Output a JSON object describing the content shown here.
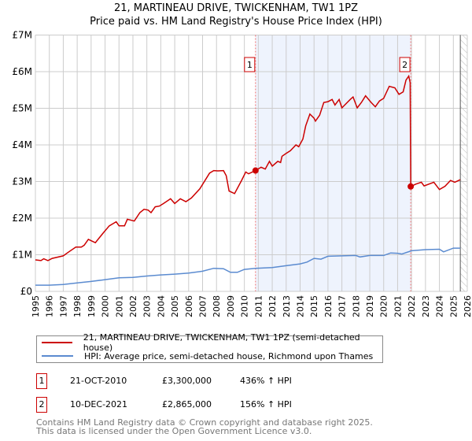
{
  "header": {
    "title": "21, MARTINEAU DRIVE, TWICKENHAM, TW1 1PZ",
    "subtitle": "Price paid vs. HM Land Registry's House Price Index (HPI)"
  },
  "legend": {
    "items": [
      {
        "label": "21, MARTINEAU DRIVE, TWICKENHAM, TW1 1PZ (semi-detached house)",
        "color": "#cc0000"
      },
      {
        "label": "HPI: Average price, semi-detached house, Richmond upon Thames",
        "color": "#5b8bd0"
      }
    ]
  },
  "transactions": [
    {
      "num": "1",
      "date": "21-OCT-2010",
      "price": "£3,300,000",
      "hpi": "436% ↑ HPI"
    },
    {
      "num": "2",
      "date": "10-DEC-2021",
      "price": "£2,865,000",
      "hpi": "156% ↑ HPI"
    }
  ],
  "footer": {
    "line1": "Contains HM Land Registry data © Crown copyright and database right 2025.",
    "line2": "This data is licensed under the Open Government Licence v3.0."
  },
  "chart_data": {
    "type": "line",
    "title": "21, MARTINEAU DRIVE, TWICKENHAM, TW1 1PZ",
    "subtitle": "Price paid vs. HM Land Registry's House Price Index (HPI)",
    "xlim": [
      1995,
      2026
    ],
    "ylim": [
      0,
      7000000
    ],
    "x_ticks": [
      "1995",
      "1996",
      "1997",
      "1998",
      "1999",
      "2000",
      "2001",
      "2002",
      "2003",
      "2004",
      "2005",
      "2006",
      "2007",
      "2008",
      "2009",
      "2010",
      "2011",
      "2012",
      "2013",
      "2014",
      "2015",
      "2016",
      "2017",
      "2018",
      "2019",
      "2020",
      "2021",
      "2022",
      "2023",
      "2024",
      "2025",
      "2026"
    ],
    "y_ticks": [
      {
        "v": 0,
        "label": "£0"
      },
      {
        "v": 1000000,
        "label": "£1M"
      },
      {
        "v": 2000000,
        "label": "£2M"
      },
      {
        "v": 3000000,
        "label": "£3M"
      },
      {
        "v": 4000000,
        "label": "£4M"
      },
      {
        "v": 5000000,
        "label": "£5M"
      },
      {
        "v": 6000000,
        "label": "£6M"
      },
      {
        "v": 7000000,
        "label": "£7M"
      }
    ],
    "grid": true,
    "shaded_range": [
      2010.8,
      2021.94
    ],
    "forecast_hatch_from": 2025.5,
    "annotations": [
      {
        "label": "1",
        "x": 2010.8,
        "y": 3300000
      },
      {
        "label": "2",
        "x": 2021.94,
        "y": 2865000
      }
    ],
    "series": [
      {
        "name": "21, MARTINEAU DRIVE, TWICKENHAM, TW1 1PZ (semi-detached house)",
        "color": "#cc0000",
        "points": [
          [
            1995.0,
            0.86
          ],
          [
            1995.4,
            0.84
          ],
          [
            1995.6,
            0.89
          ],
          [
            1995.9,
            0.84
          ],
          [
            1996.2,
            0.9
          ],
          [
            1997.0,
            0.97
          ],
          [
            1997.4,
            1.08
          ],
          [
            1997.9,
            1.21
          ],
          [
            1998.3,
            1.21
          ],
          [
            1998.5,
            1.26
          ],
          [
            1998.8,
            1.42
          ],
          [
            1999.3,
            1.33
          ],
          [
            1999.6,
            1.47
          ],
          [
            1999.9,
            1.61
          ],
          [
            2000.3,
            1.79
          ],
          [
            2000.8,
            1.9
          ],
          [
            2001.0,
            1.79
          ],
          [
            2001.4,
            1.79
          ],
          [
            2001.6,
            1.97
          ],
          [
            2002.1,
            1.92
          ],
          [
            2002.5,
            2.15
          ],
          [
            2002.8,
            2.24
          ],
          [
            2003.1,
            2.22
          ],
          [
            2003.3,
            2.15
          ],
          [
            2003.6,
            2.31
          ],
          [
            2003.9,
            2.33
          ],
          [
            2004.2,
            2.4
          ],
          [
            2004.7,
            2.53
          ],
          [
            2005.0,
            2.4
          ],
          [
            2005.4,
            2.53
          ],
          [
            2005.8,
            2.45
          ],
          [
            2006.2,
            2.55
          ],
          [
            2006.8,
            2.8
          ],
          [
            2007.5,
            3.23
          ],
          [
            2007.8,
            3.3
          ],
          [
            2008.1,
            3.29
          ],
          [
            2008.5,
            3.3
          ],
          [
            2008.7,
            3.16
          ],
          [
            2008.9,
            2.74
          ],
          [
            2009.3,
            2.67
          ],
          [
            2009.8,
            3.03
          ],
          [
            2010.1,
            3.26
          ],
          [
            2010.3,
            3.21
          ],
          [
            2010.8,
            3.3
          ],
          [
            2011.2,
            3.39
          ],
          [
            2011.5,
            3.34
          ],
          [
            2011.8,
            3.55
          ],
          [
            2012.0,
            3.42
          ],
          [
            2012.4,
            3.55
          ],
          [
            2012.6,
            3.52
          ],
          [
            2012.7,
            3.69
          ],
          [
            2013.0,
            3.77
          ],
          [
            2013.3,
            3.84
          ],
          [
            2013.7,
            4.0
          ],
          [
            2013.9,
            3.95
          ],
          [
            2014.2,
            4.16
          ],
          [
            2014.4,
            4.52
          ],
          [
            2014.7,
            4.84
          ],
          [
            2015.0,
            4.73
          ],
          [
            2015.1,
            4.65
          ],
          [
            2015.4,
            4.81
          ],
          [
            2015.7,
            5.16
          ],
          [
            2016.0,
            5.18
          ],
          [
            2016.3,
            5.24
          ],
          [
            2016.5,
            5.09
          ],
          [
            2016.8,
            5.24
          ],
          [
            2017.0,
            5.01
          ],
          [
            2017.6,
            5.24
          ],
          [
            2017.8,
            5.31
          ],
          [
            2018.1,
            5.01
          ],
          [
            2018.4,
            5.16
          ],
          [
            2018.7,
            5.34
          ],
          [
            2019.1,
            5.16
          ],
          [
            2019.4,
            5.04
          ],
          [
            2019.7,
            5.2
          ],
          [
            2020.0,
            5.27
          ],
          [
            2020.4,
            5.6
          ],
          [
            2020.8,
            5.56
          ],
          [
            2021.1,
            5.38
          ],
          [
            2021.4,
            5.45
          ],
          [
            2021.6,
            5.77
          ],
          [
            2021.8,
            5.88
          ],
          [
            2021.9,
            5.7
          ],
          [
            2021.94,
            2.865
          ],
          [
            2022.3,
            2.93
          ],
          [
            2022.7,
            2.98
          ],
          [
            2022.9,
            2.88
          ],
          [
            2023.6,
            2.98
          ],
          [
            2024.0,
            2.78
          ],
          [
            2024.4,
            2.87
          ],
          [
            2024.8,
            3.03
          ],
          [
            2025.1,
            2.98
          ],
          [
            2025.5,
            3.05
          ]
        ]
      },
      {
        "name": "HPI: Average price, semi-detached house, Richmond upon Thames",
        "color": "#5b8bd0",
        "points": [
          [
            1995.0,
            0.17
          ],
          [
            1996.0,
            0.17
          ],
          [
            1997.0,
            0.19
          ],
          [
            1998.0,
            0.23
          ],
          [
            1999.0,
            0.27
          ],
          [
            2000.0,
            0.32
          ],
          [
            2001.0,
            0.37
          ],
          [
            2002.0,
            0.38
          ],
          [
            2003.0,
            0.42
          ],
          [
            2004.0,
            0.45
          ],
          [
            2005.0,
            0.47
          ],
          [
            2006.0,
            0.5
          ],
          [
            2007.0,
            0.55
          ],
          [
            2007.8,
            0.63
          ],
          [
            2008.5,
            0.62
          ],
          [
            2009.0,
            0.52
          ],
          [
            2009.5,
            0.52
          ],
          [
            2010.0,
            0.6
          ],
          [
            2010.8,
            0.63
          ],
          [
            2012.0,
            0.65
          ],
          [
            2013.0,
            0.7
          ],
          [
            2014.0,
            0.75
          ],
          [
            2014.5,
            0.8
          ],
          [
            2015.0,
            0.9
          ],
          [
            2015.5,
            0.88
          ],
          [
            2016.0,
            0.96
          ],
          [
            2017.0,
            0.97
          ],
          [
            2018.0,
            0.98
          ],
          [
            2018.3,
            0.94
          ],
          [
            2019.0,
            0.98
          ],
          [
            2020.0,
            0.98
          ],
          [
            2020.5,
            1.05
          ],
          [
            2021.0,
            1.04
          ],
          [
            2021.3,
            1.02
          ],
          [
            2022.0,
            1.11
          ],
          [
            2023.0,
            1.14
          ],
          [
            2024.0,
            1.15
          ],
          [
            2024.3,
            1.08
          ],
          [
            2025.0,
            1.18
          ],
          [
            2025.5,
            1.18
          ]
        ]
      }
    ],
    "y_unit": "millions GBP"
  }
}
